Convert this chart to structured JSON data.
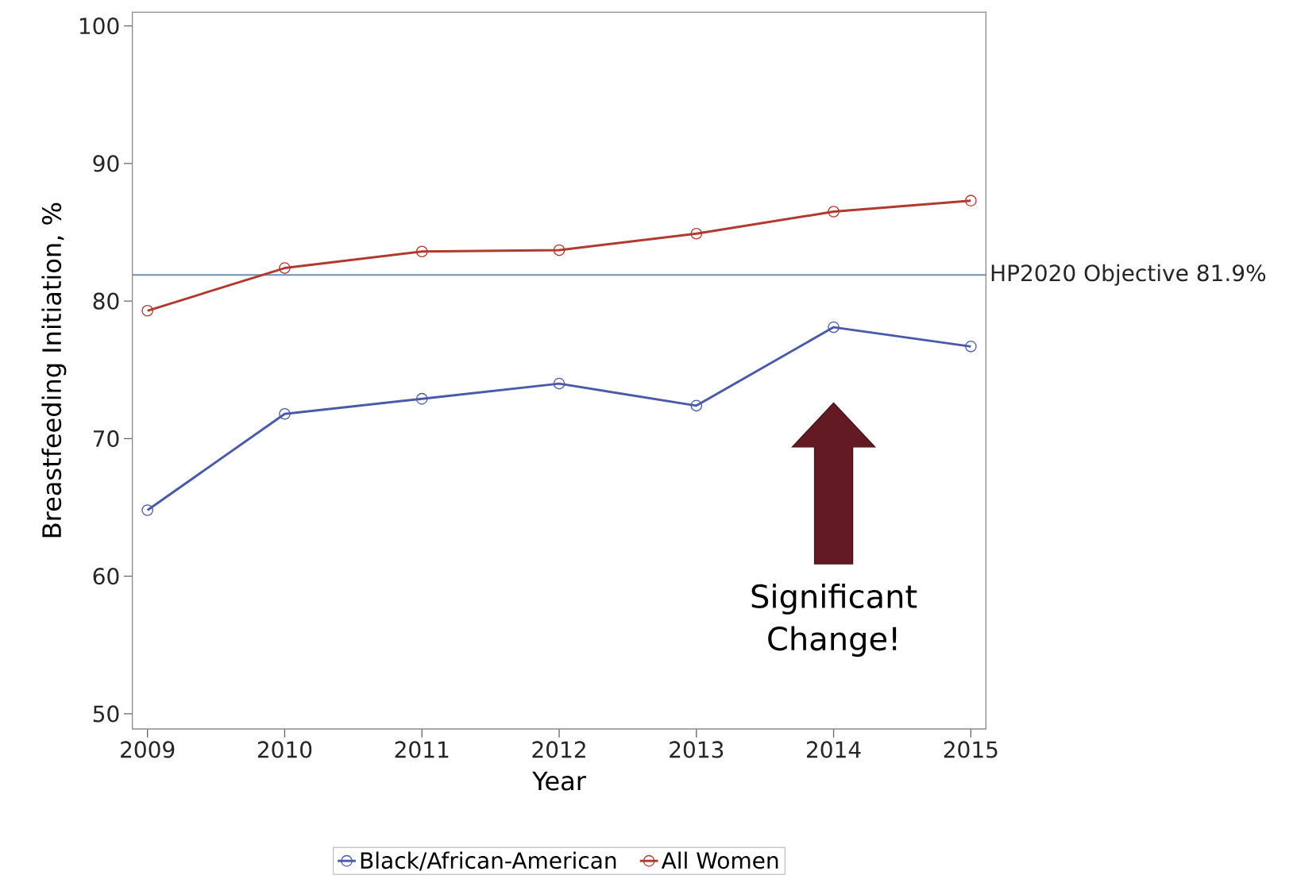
{
  "chart_data": {
    "type": "line",
    "xlabel": "Year",
    "ylabel": "Breastfeeding Initiation, %",
    "x": [
      2009,
      2010,
      2011,
      2012,
      2013,
      2014,
      2015
    ],
    "series": [
      {
        "name": "Black/African-American",
        "color": "#4a5aa8",
        "values": [
          64.8,
          71.8,
          72.9,
          74.0,
          72.4,
          78.1,
          76.7
        ]
      },
      {
        "name": "All Women",
        "color": "#b03a2e",
        "values": [
          79.3,
          82.4,
          83.6,
          83.7,
          84.9,
          86.5,
          87.3
        ]
      }
    ],
    "xlim": [
      2008.89,
      2015.11
    ],
    "xticks": [
      2009,
      2010,
      2011,
      2012,
      2013,
      2014,
      2015
    ],
    "ylim": [
      48.9,
      101
    ],
    "yticks": [
      50,
      60,
      70,
      80,
      90,
      100
    ],
    "ref_lines": [
      {
        "axis": "y",
        "value": 81.9,
        "label": "HP2020 Objective 81.9%",
        "color": "#6f8fb5",
        "line_style": "solid"
      }
    ],
    "annotations": [
      "Significant Change!"
    ],
    "marker": "circle",
    "line_style": "solid",
    "grid": false,
    "legend": "bottom"
  }
}
